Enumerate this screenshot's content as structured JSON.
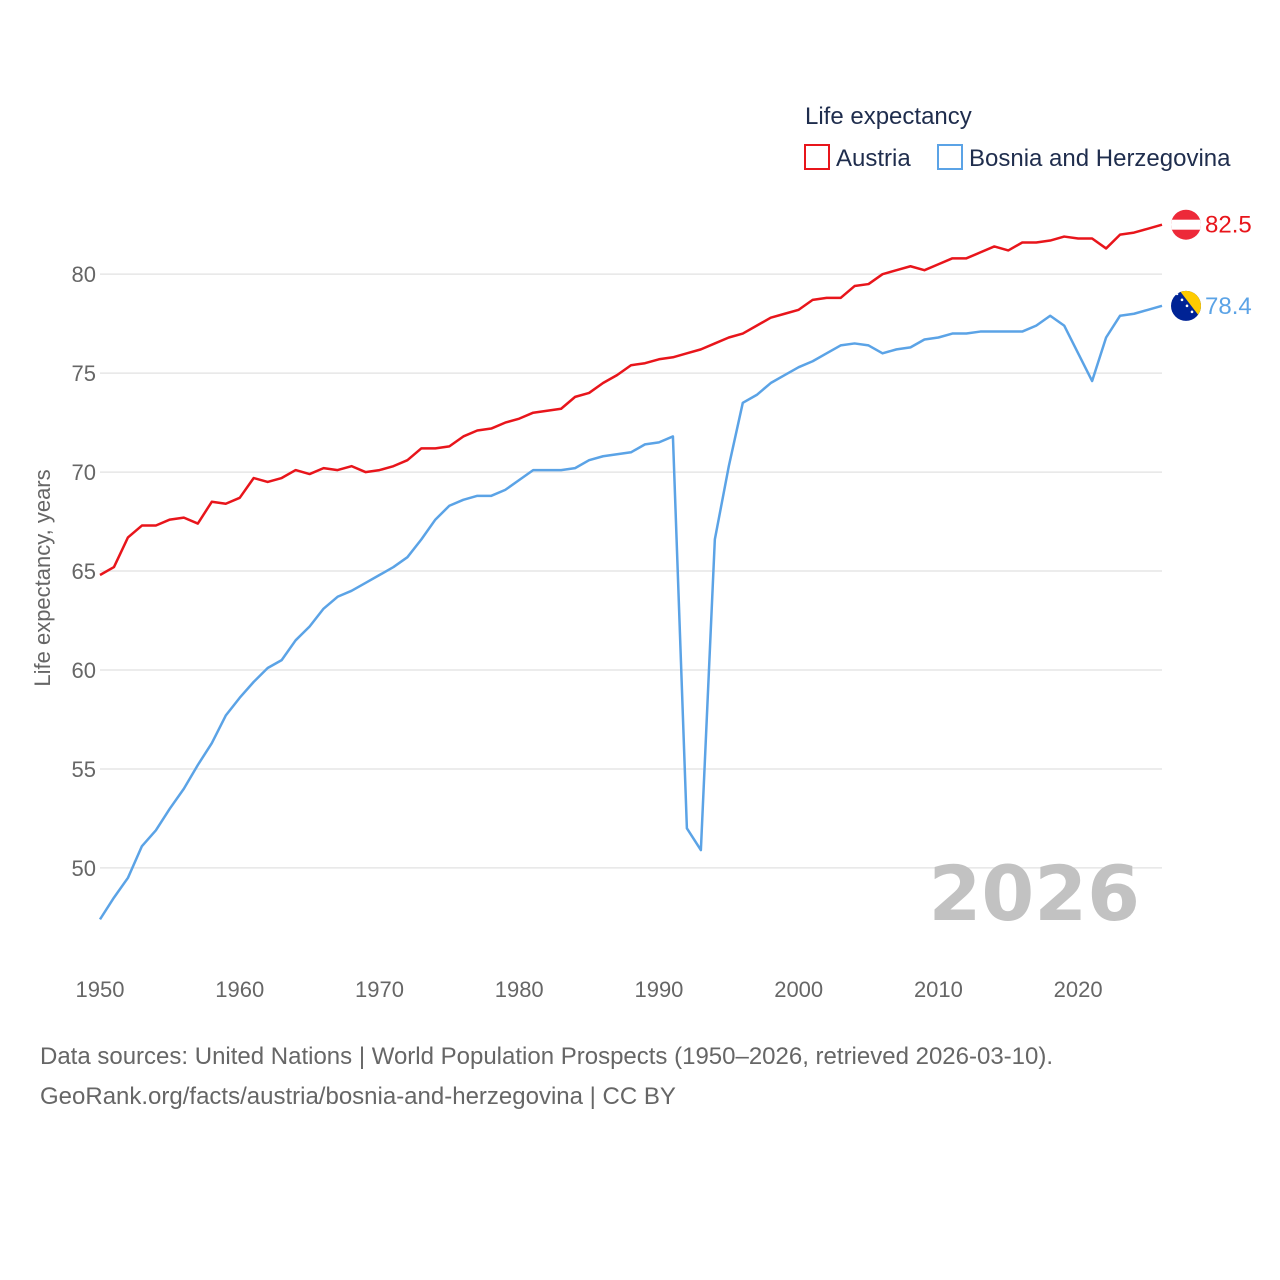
{
  "chart_data": {
    "type": "line",
    "ylabel": "Life expectancy, years",
    "xlabel": "",
    "xlim": [
      1950,
      2026
    ],
    "ylim": [
      45.6,
      84
    ],
    "xticks": [
      1950,
      1960,
      1970,
      1980,
      1990,
      2000,
      2010,
      2020
    ],
    "yticks": [
      50,
      55,
      60,
      65,
      70,
      75,
      80
    ],
    "legend_title": "Life expectancy",
    "current_year": "2026",
    "series": [
      {
        "name": "Austria",
        "color": "#e8151b",
        "flag": "austria-flag",
        "end_label": "82.5",
        "x": [
          1950,
          1951,
          1952,
          1953,
          1954,
          1955,
          1956,
          1957,
          1958,
          1959,
          1960,
          1961,
          1962,
          1963,
          1964,
          1965,
          1966,
          1967,
          1968,
          1969,
          1970,
          1971,
          1972,
          1973,
          1974,
          1975,
          1976,
          1977,
          1978,
          1979,
          1980,
          1981,
          1982,
          1983,
          1984,
          1985,
          1986,
          1987,
          1988,
          1989,
          1990,
          1991,
          1992,
          1993,
          1994,
          1995,
          1996,
          1997,
          1998,
          1999,
          2000,
          2001,
          2002,
          2003,
          2004,
          2005,
          2006,
          2007,
          2008,
          2009,
          2010,
          2011,
          2012,
          2013,
          2014,
          2015,
          2016,
          2017,
          2018,
          2019,
          2020,
          2021,
          2022,
          2023,
          2024,
          2025,
          2026
        ],
        "values": [
          64.8,
          65.2,
          66.7,
          67.3,
          67.3,
          67.6,
          67.7,
          67.4,
          68.5,
          68.4,
          68.7,
          69.7,
          69.5,
          69.7,
          70.1,
          69.9,
          70.2,
          70.1,
          70.3,
          70.0,
          70.1,
          70.3,
          70.6,
          71.2,
          71.2,
          71.3,
          71.8,
          72.1,
          72.2,
          72.5,
          72.7,
          73.0,
          73.1,
          73.2,
          73.8,
          74.0,
          74.5,
          74.9,
          75.4,
          75.5,
          75.7,
          75.8,
          76.0,
          76.2,
          76.5,
          76.8,
          77.0,
          77.4,
          77.8,
          78.0,
          78.2,
          78.7,
          78.8,
          78.8,
          79.4,
          79.5,
          80.0,
          80.2,
          80.4,
          80.2,
          80.5,
          80.8,
          80.8,
          81.1,
          81.4,
          81.2,
          81.6,
          81.6,
          81.7,
          81.9,
          81.8,
          81.8,
          81.3,
          82.0,
          82.1,
          82.3,
          82.5
        ]
      },
      {
        "name": "Bosnia and Herzegovina",
        "color": "#5ba3e6",
        "flag": "bosnia-flag",
        "end_label": "78.4",
        "x": [
          1950,
          1951,
          1952,
          1953,
          1954,
          1955,
          1956,
          1957,
          1958,
          1959,
          1960,
          1961,
          1962,
          1963,
          1964,
          1965,
          1966,
          1967,
          1968,
          1969,
          1970,
          1971,
          1972,
          1973,
          1974,
          1975,
          1976,
          1977,
          1978,
          1979,
          1980,
          1981,
          1982,
          1983,
          1984,
          1985,
          1986,
          1987,
          1988,
          1989,
          1990,
          1991,
          1992,
          1993,
          1994,
          1995,
          1996,
          1997,
          1998,
          1999,
          2000,
          2001,
          2002,
          2003,
          2004,
          2005,
          2006,
          2007,
          2008,
          2009,
          2010,
          2011,
          2012,
          2013,
          2014,
          2015,
          2016,
          2017,
          2018,
          2019,
          2020,
          2021,
          2022,
          2023,
          2024,
          2025,
          2026
        ],
        "values": [
          47.4,
          48.5,
          49.5,
          51.1,
          51.9,
          53.0,
          54.0,
          55.2,
          56.3,
          57.7,
          58.6,
          59.4,
          60.1,
          60.5,
          61.5,
          62.2,
          63.1,
          63.7,
          64.0,
          64.4,
          64.8,
          65.2,
          65.7,
          66.6,
          67.6,
          68.3,
          68.6,
          68.8,
          68.8,
          69.1,
          69.6,
          70.1,
          70.1,
          70.1,
          70.2,
          70.6,
          70.8,
          70.9,
          71.0,
          71.4,
          71.5,
          71.8,
          52.0,
          50.9,
          66.6,
          70.3,
          73.5,
          73.9,
          74.5,
          74.9,
          75.3,
          75.6,
          76.0,
          76.4,
          76.5,
          76.4,
          76.0,
          76.2,
          76.3,
          76.7,
          76.8,
          77.0,
          77.0,
          77.1,
          77.1,
          77.1,
          77.1,
          77.4,
          77.9,
          77.4,
          76.0,
          74.6,
          76.8,
          77.9,
          78.0,
          78.2,
          78.4
        ]
      }
    ]
  },
  "footer": {
    "line1": "Data sources: United Nations | World Population Prospects (1950–2026, retrieved 2026-03-10).",
    "line2": "GeoRank.org/facts/austria/bosnia-and-herzegovina | CC BY"
  }
}
